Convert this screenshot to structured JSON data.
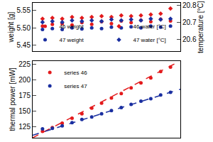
{
  "chart_data": [
    {
      "type": "scatter",
      "y_label": "weight [g]",
      "y2_label": "temperature [°C]",
      "x": [
        1,
        2,
        3,
        4,
        5,
        6,
        7,
        8,
        9,
        10,
        11,
        12,
        13,
        14
      ],
      "xlim": [
        0,
        15
      ],
      "ylim": [
        5.432,
        5.572
      ],
      "yticks": [
        5.45,
        {
          "value": 5.5,
          "label": "5.50"
        },
        5.55
      ],
      "y2lim": [
        20.527,
        20.814
      ],
      "y2ticks": [
        20.6,
        20.7,
        20.8
      ],
      "grid": false,
      "tick_labels": "y",
      "legend": "lower center",
      "series": [
        {
          "name": "46 weight",
          "color": "#e31a1c",
          "marker": "circle",
          "values": [
            5.505,
            5.51,
            5.512,
            5.508,
            5.515,
            5.51,
            5.518,
            5.512,
            5.52,
            5.515,
            5.522,
            5.518,
            5.525,
            5.52
          ]
        },
        {
          "name": "46 water [°C]",
          "color": "#e31a1c",
          "marker": "diamond",
          "axis": "y2",
          "values": [
            20.72,
            20.725,
            20.72,
            20.73,
            20.725,
            20.73,
            20.735,
            20.73,
            20.74,
            20.735,
            20.74,
            20.745,
            20.75,
            20.78
          ]
        },
        {
          "name": "47 weight",
          "color": "#1a2fa0",
          "marker": "circle",
          "values": [
            5.495,
            5.498,
            5.495,
            5.5,
            5.497,
            5.5,
            5.498,
            5.502,
            5.5,
            5.503,
            5.5,
            5.505,
            5.502,
            5.505
          ]
        },
        {
          "name": "47 water [°C]",
          "color": "#1a2fa0",
          "marker": "diamond",
          "axis": "y2",
          "values": [
            20.7,
            20.705,
            20.7,
            20.71,
            20.705,
            20.71,
            20.705,
            20.715,
            20.71,
            20.715,
            20.71,
            20.72,
            20.715,
            20.72
          ]
        }
      ]
    },
    {
      "type": "scatter",
      "y_label": "thermal power [mW]",
      "x": [
        1,
        2,
        3,
        4,
        5,
        6,
        7,
        8,
        9,
        10,
        11,
        12,
        13,
        14
      ],
      "xlim": [
        0,
        15
      ],
      "ylim": [
        108,
        230
      ],
      "yticks": [
        125,
        150,
        175,
        200,
        225
      ],
      "grid": false,
      "tick_labels": "y",
      "legend": "upper left",
      "series": [
        {
          "name": "series 46",
          "color": "#e31a1c",
          "marker": "circle",
          "values": [
            118,
            124,
            131,
            139,
            146,
            155,
            163,
            171,
            178,
            187,
            195,
            203,
            213,
            220
          ],
          "fit": {
            "x": [
              0,
              15
            ],
            "values": [
              108,
              230
            ],
            "line_style": "dashed"
          }
        },
        {
          "name": "series 47",
          "color": "#1a2fa0",
          "marker": "circle",
          "values": [
            122,
            123,
            127,
            132,
            137,
            141,
            146,
            151,
            156,
            161,
            166,
            170,
            176,
            180
          ],
          "fit": {
            "x": [
              0,
              15
            ],
            "values": [
              112,
              185
            ],
            "line_style": "dashed"
          }
        }
      ]
    }
  ]
}
